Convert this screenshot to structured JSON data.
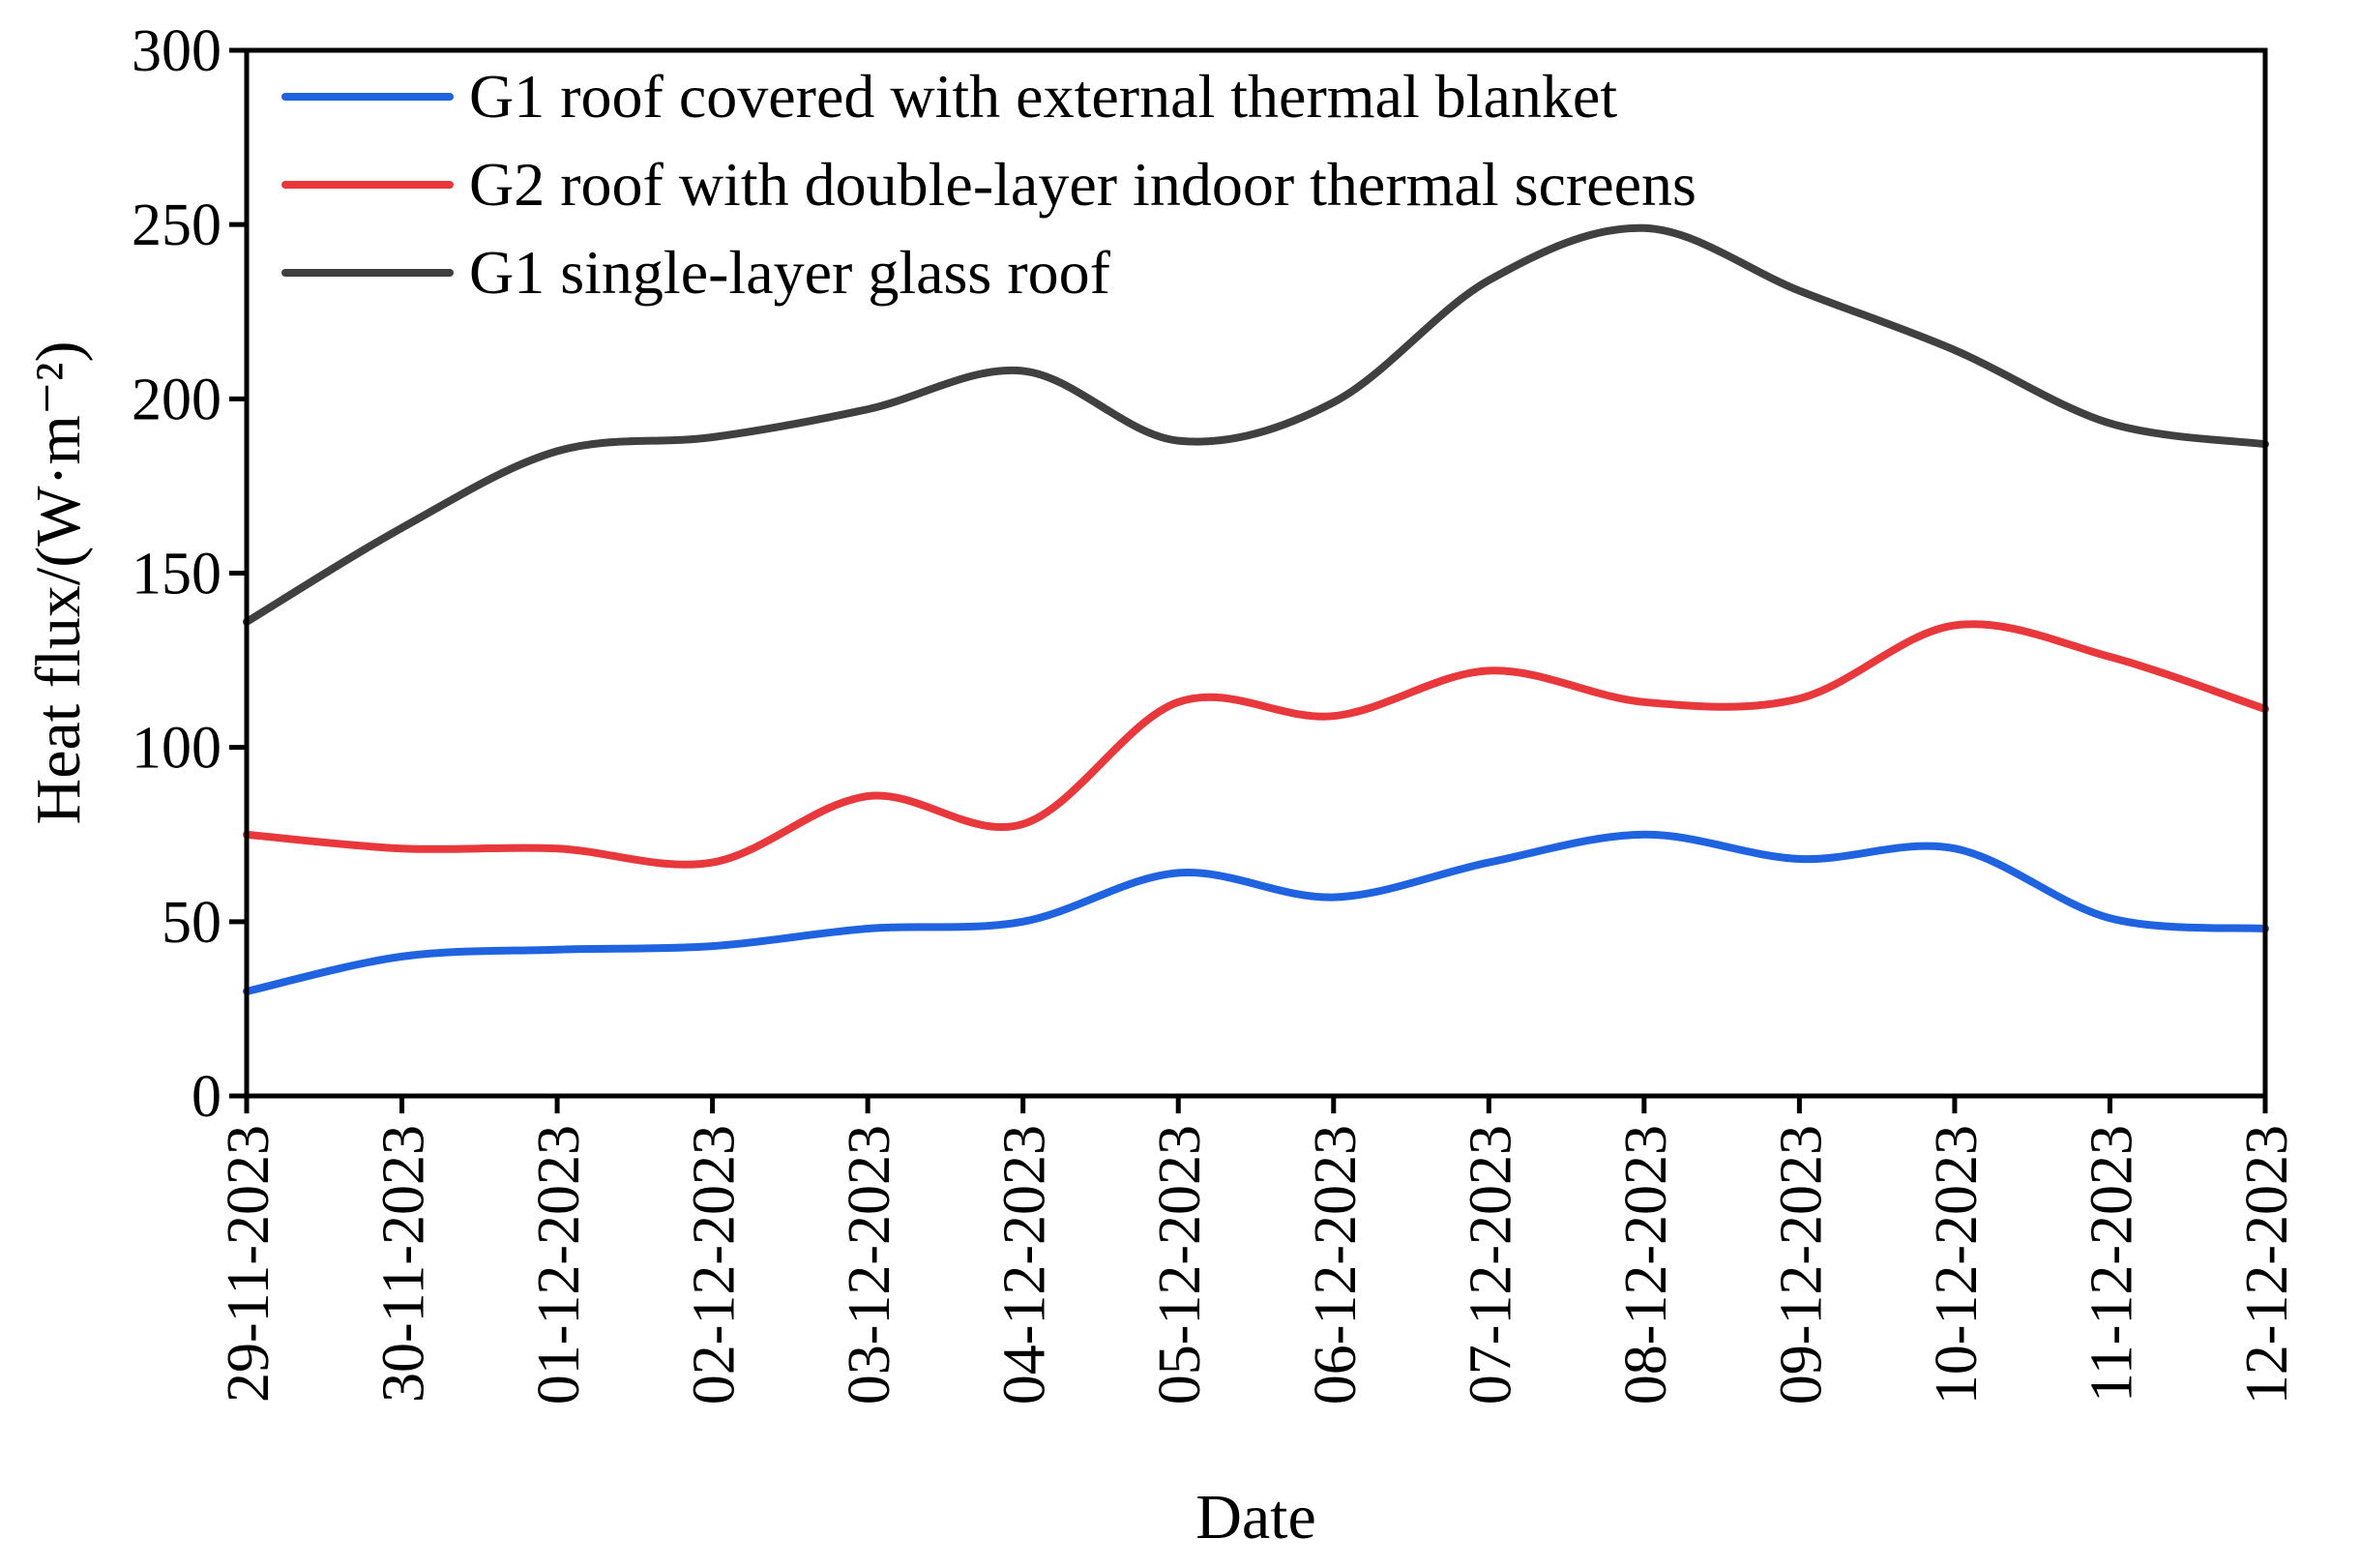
{
  "chart_data": {
    "type": "line",
    "title": "",
    "xlabel": "Date",
    "ylabel": "Heat flux/(W·m⁻²)",
    "ylim": [
      0,
      300
    ],
    "yticks": [
      0,
      50,
      100,
      150,
      200,
      250,
      300
    ],
    "categories": [
      "29-11-2023",
      "30-11-2023",
      "01-12-2023",
      "02-12-2023",
      "03-12-2023",
      "04-12-2023",
      "05-12-2023",
      "06-12-2023",
      "07-12-2023",
      "08-12-2023",
      "09-12-2023",
      "10-12-2023",
      "11-12-2023",
      "12-12-2023"
    ],
    "legend_position": "top-left",
    "series": [
      {
        "name": "G1 roof covered with external thermal blanket",
        "color": "#1f63e0",
        "values": [
          30,
          40,
          42,
          43,
          48,
          50,
          64,
          57,
          67,
          75,
          68,
          71,
          51,
          48
        ]
      },
      {
        "name": "G2 roof with double-layer indoor thermal screens",
        "color": "#e8383b",
        "values": [
          75,
          71,
          71,
          67,
          86,
          78,
          113,
          109,
          122,
          113,
          114,
          135,
          126,
          111
        ]
      },
      {
        "name": "G1 single-layer glass roof",
        "color": "#404040",
        "values": [
          136,
          163,
          185,
          189,
          197,
          208,
          188,
          199,
          234,
          249,
          231,
          214,
          193,
          187
        ]
      }
    ]
  }
}
